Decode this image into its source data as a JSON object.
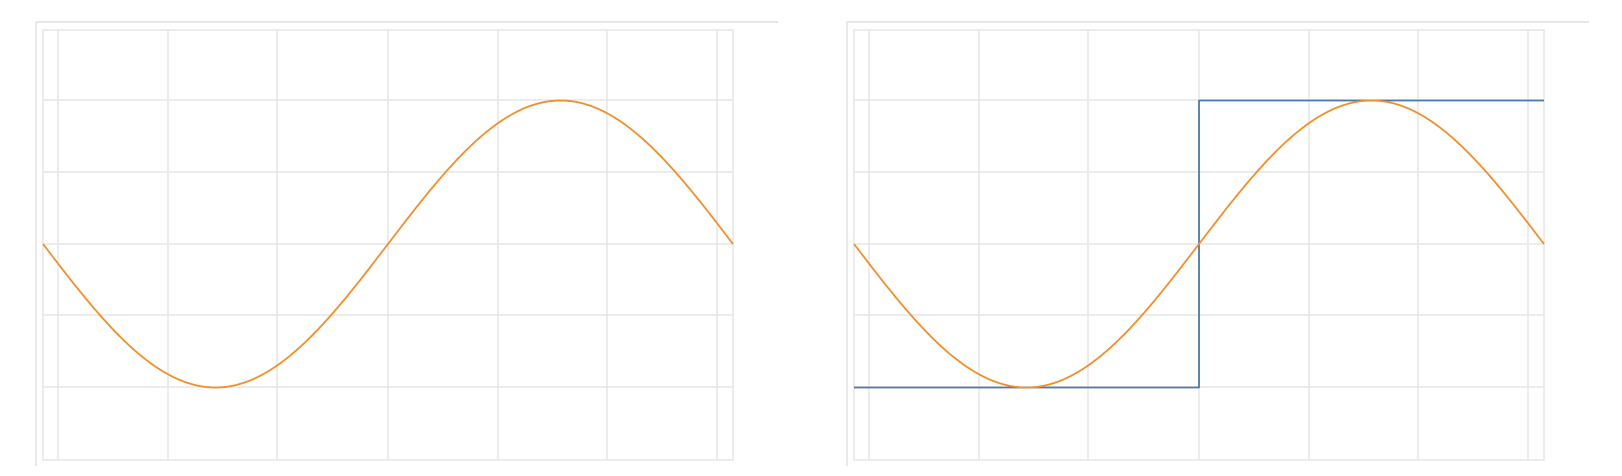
{
  "chart_data": [
    {
      "type": "line",
      "x_range": [
        0,
        1
      ],
      "ylim": [
        -1.5,
        1.5
      ],
      "grid": true,
      "series": [
        {
          "kind": "sine",
          "color": "#f28e2b",
          "values": [
            {
              "x": 0.0,
              "y": 0.0
            },
            {
              "x": 0.25,
              "y": -1.0
            },
            {
              "x": 0.5,
              "y": 0.0
            },
            {
              "x": 0.75,
              "y": 1.0
            },
            {
              "x": 1.0,
              "y": 0.0
            }
          ]
        }
      ]
    },
    {
      "type": "line",
      "x_range": [
        0,
        1
      ],
      "ylim": [
        -1.5,
        1.5
      ],
      "grid": true,
      "series": [
        {
          "kind": "square",
          "color": "#4e79a7",
          "values": [
            {
              "x": 0.0,
              "y": -1.0
            },
            {
              "x": 0.5,
              "y": -1.0
            },
            {
              "x": 0.5,
              "y": 1.0
            },
            {
              "x": 1.0,
              "y": 1.0
            }
          ]
        },
        {
          "kind": "sine",
          "color": "#f28e2b",
          "values": [
            {
              "x": 0.0,
              "y": 0.0
            },
            {
              "x": 0.25,
              "y": -1.0
            },
            {
              "x": 0.5,
              "y": 0.0
            },
            {
              "x": 0.75,
              "y": 1.0
            },
            {
              "x": 1.0,
              "y": 0.0
            }
          ]
        }
      ]
    }
  ]
}
